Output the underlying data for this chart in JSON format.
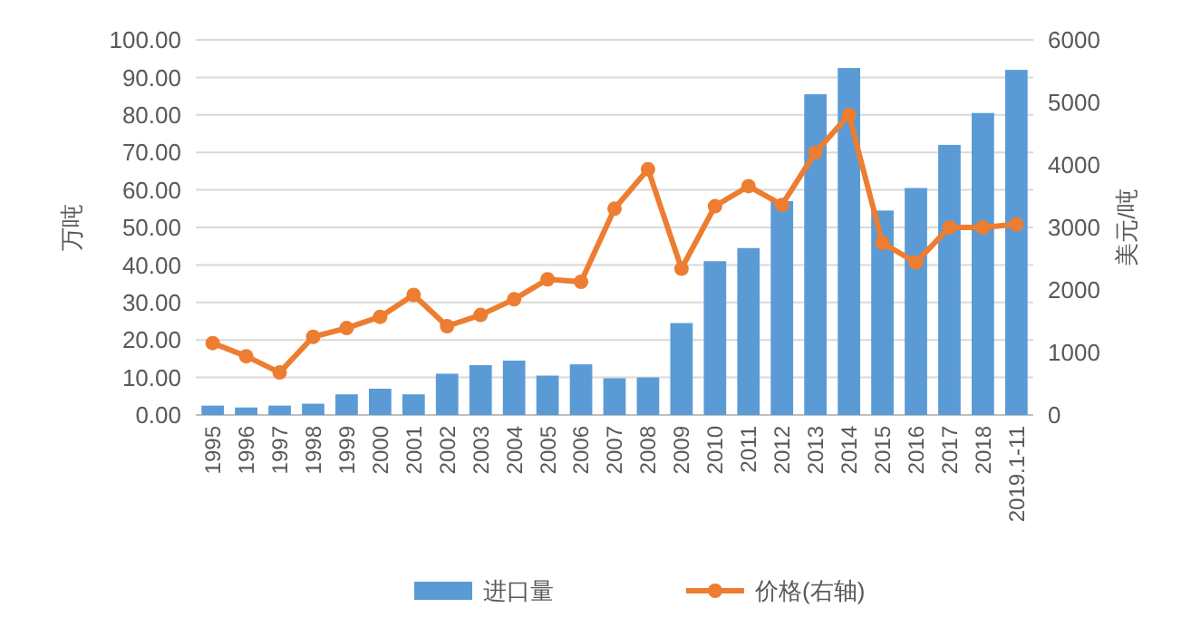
{
  "chart_data": {
    "type": "bar",
    "ylabel": "万吨",
    "y2label": "美元/吨",
    "categories": [
      "1995",
      "1996",
      "1997",
      "1998",
      "1999",
      "2000",
      "2001",
      "2002",
      "2003",
      "2004",
      "2005",
      "2006",
      "2007",
      "2008",
      "2009",
      "2010",
      "2011",
      "2012",
      "2013",
      "2014",
      "2015",
      "2016",
      "2017",
      "2018",
      "2019.1-11"
    ],
    "series": [
      {
        "name": "进口量",
        "color": "#5b9bd5",
        "values": [
          2.5,
          2,
          2.5,
          3,
          5.5,
          7,
          5.5,
          11,
          13.3,
          14.5,
          10.5,
          13.5,
          9.8,
          10,
          24.5,
          41,
          44.5,
          57,
          85.5,
          92.5,
          54.5,
          60.5,
          72,
          80.5,
          92
        ]
      },
      {
        "name": "价格(右轴)",
        "type": "line",
        "axis": "y2",
        "color": "#ed7d31",
        "marker": "circle",
        "values": [
          1150,
          940,
          680,
          1250,
          1390,
          1570,
          1920,
          1420,
          1600,
          1850,
          2170,
          2130,
          3300,
          3930,
          2340,
          3340,
          3660,
          3360,
          4200,
          4800,
          2750,
          2440,
          3000,
          3000,
          3050
        ]
      }
    ],
    "ylim": [
      0,
      100
    ],
    "yticks": [
      {
        "value": 0,
        "label": "0.00"
      },
      {
        "value": 10,
        "label": "10.00"
      },
      {
        "value": 20,
        "label": "20.00"
      },
      {
        "value": 30,
        "label": "30.00"
      },
      {
        "value": 40,
        "label": "40.00"
      },
      {
        "value": 50,
        "label": "50.00"
      },
      {
        "value": 60,
        "label": "60.00"
      },
      {
        "value": 70,
        "label": "70.00"
      },
      {
        "value": 80,
        "label": "80.00"
      },
      {
        "value": 90,
        "label": "90.00"
      },
      {
        "value": 100,
        "label": "100.00"
      }
    ],
    "y2lim": [
      0,
      6000
    ],
    "y2ticks": [
      0,
      1000,
      2000,
      3000,
      4000,
      5000,
      6000
    ],
    "grid": "y",
    "legend": "bottom"
  }
}
